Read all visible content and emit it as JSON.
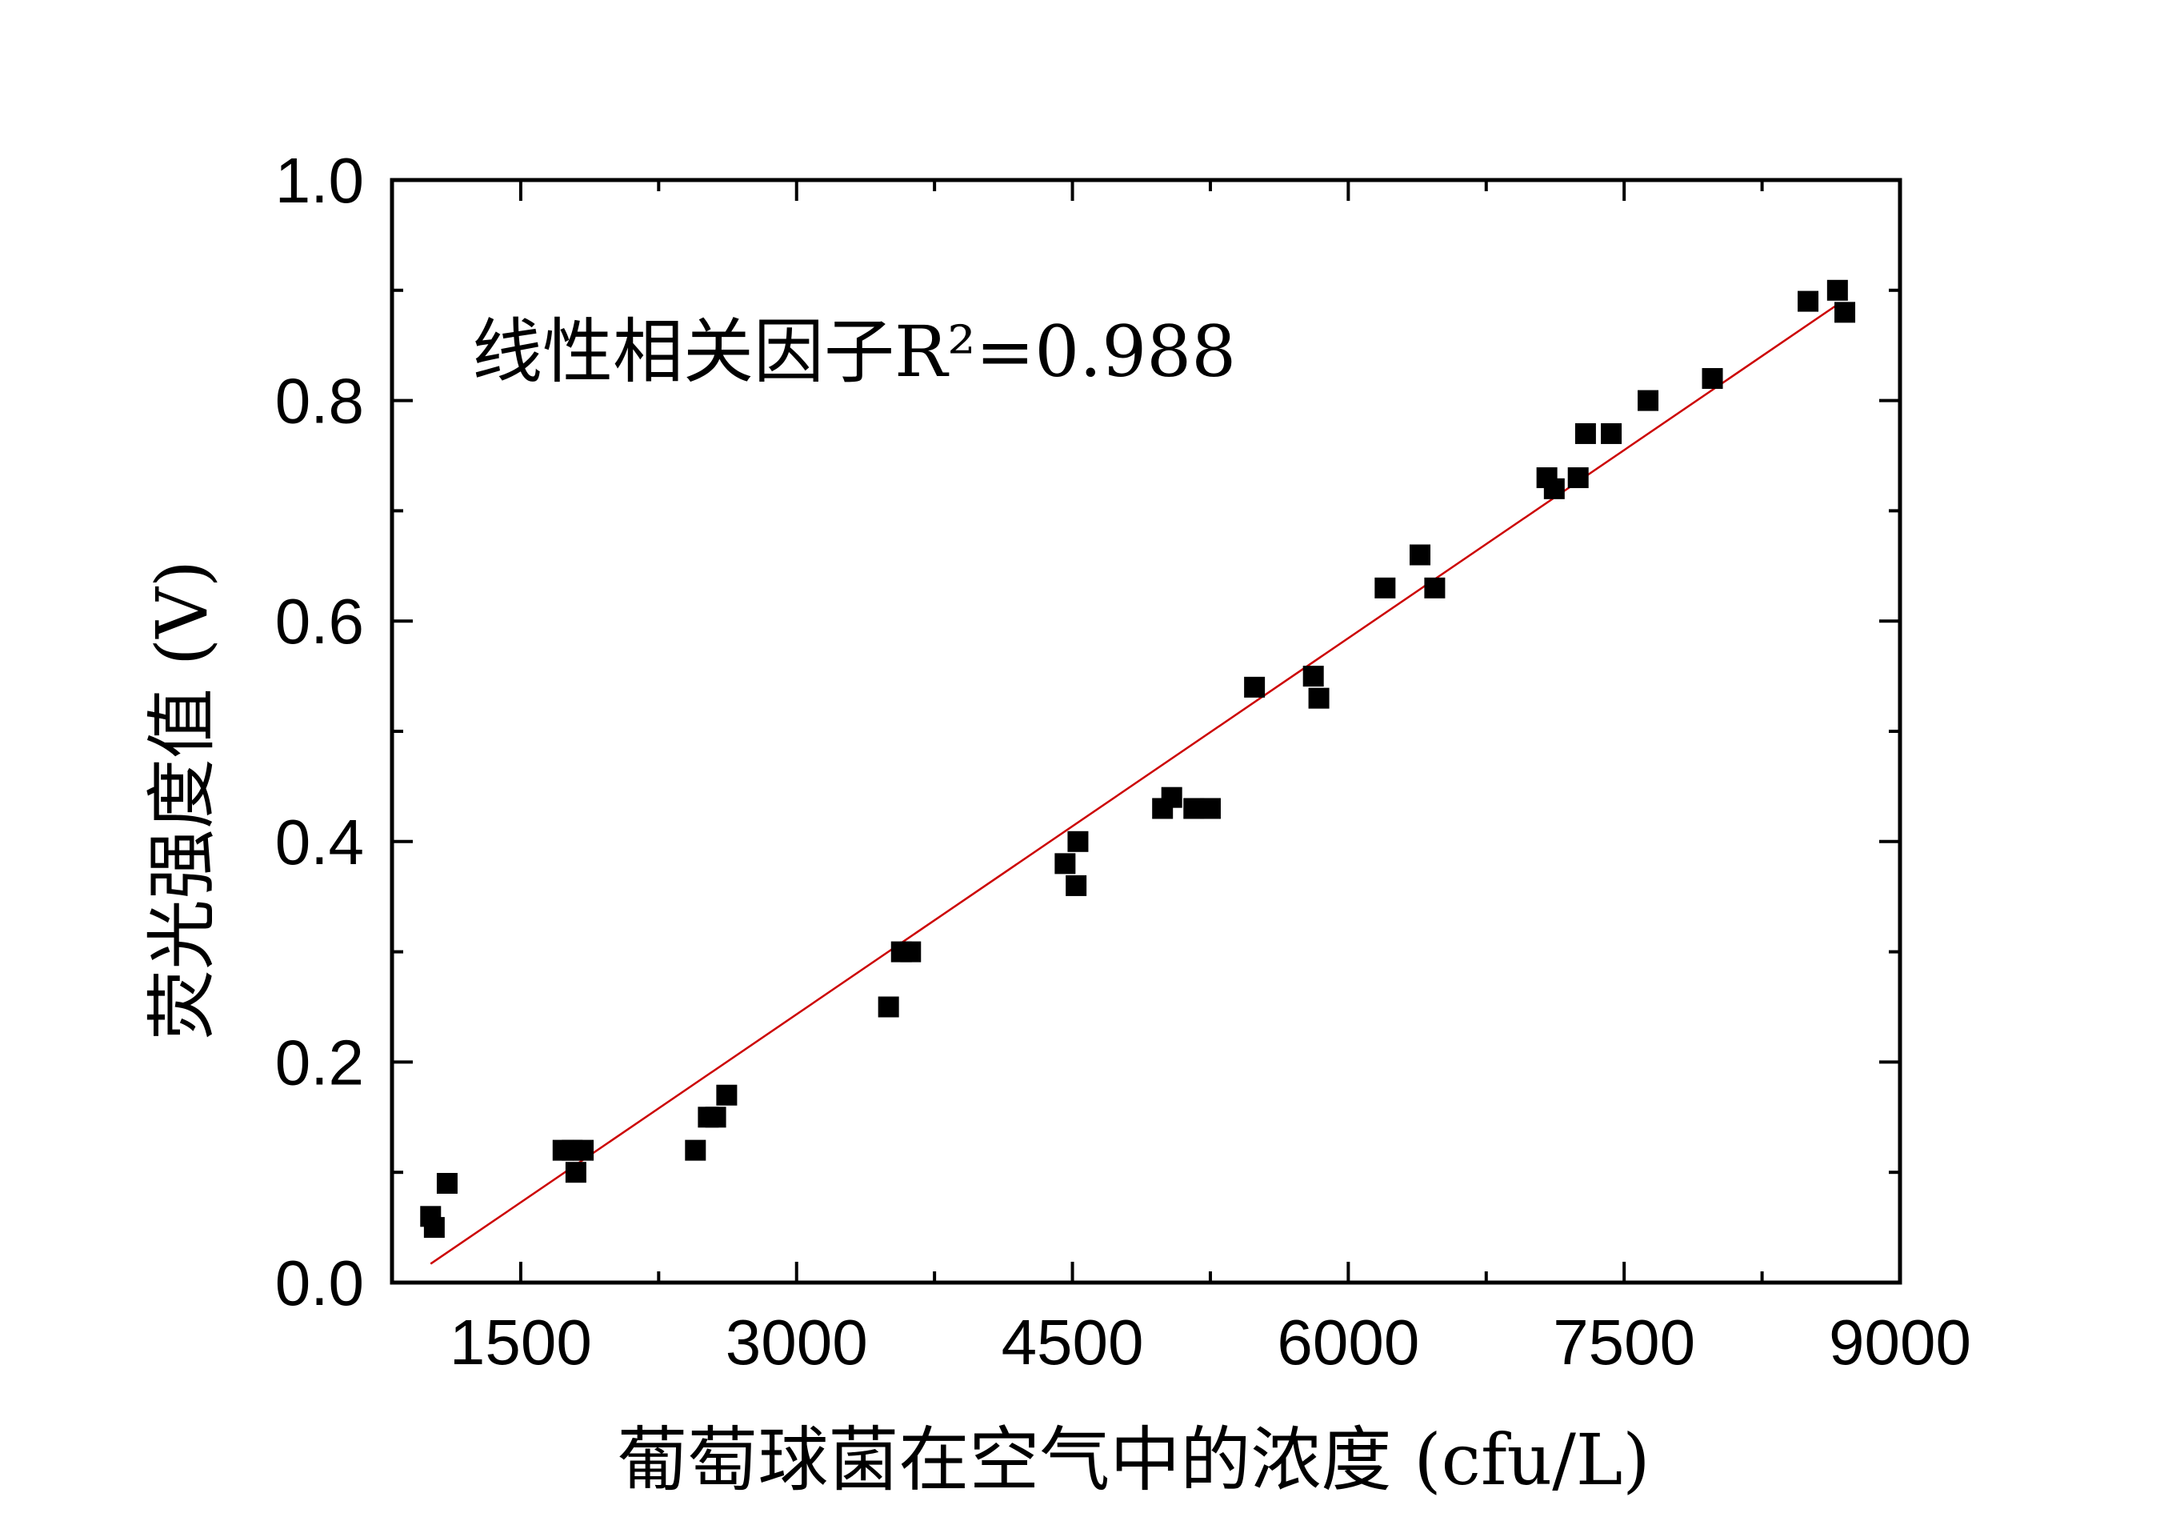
{
  "chart_data": {
    "type": "scatter",
    "title": "",
    "xlabel": "葡萄球菌在空气中的浓度 (cfu/L)",
    "ylabel": "荧光强度值 (V)",
    "xlim": [
      800,
      9000
    ],
    "ylim": [
      0.0,
      1.0
    ],
    "x_ticks": [
      1500,
      3000,
      4500,
      6000,
      7500,
      9000
    ],
    "x_tick_labels": [
      "1500",
      "3000",
      "4500",
      "6000",
      "7500",
      "9000"
    ],
    "x_minor_ticks": [
      750,
      2250,
      3750,
      5250,
      6750,
      8250
    ],
    "y_ticks": [
      0.0,
      0.2,
      0.4,
      0.6,
      0.8,
      1.0
    ],
    "y_tick_labels": [
      "0.0",
      "0.2",
      "0.4",
      "0.6",
      "0.8",
      "1.0"
    ],
    "y_minor_ticks": [
      0.1,
      0.3,
      0.5,
      0.7,
      0.9
    ],
    "grid": false,
    "annotation": "线性相关因子R²=0.988",
    "colors": {
      "points": "#000000",
      "fit_line": "#cc0000",
      "axes": "#000000"
    },
    "series": [
      {
        "marker": "square",
        "x": [
          1010,
          1030,
          1100,
          1730,
          1780,
          1800,
          1840,
          2450,
          2520,
          2560,
          2620,
          3500,
          3570,
          3620,
          4460,
          4520,
          4530,
          4990,
          5040,
          5160,
          5250,
          5490,
          5810,
          5840,
          6200,
          6390,
          6470,
          7080,
          7120,
          7250,
          7290,
          7430,
          7630,
          7980,
          8500,
          8660,
          8700
        ],
        "y": [
          0.06,
          0.05,
          0.09,
          0.12,
          0.12,
          0.1,
          0.12,
          0.12,
          0.15,
          0.15,
          0.17,
          0.25,
          0.3,
          0.3,
          0.38,
          0.36,
          0.4,
          0.43,
          0.44,
          0.43,
          0.43,
          0.54,
          0.55,
          0.53,
          0.63,
          0.66,
          0.63,
          0.73,
          0.72,
          0.73,
          0.77,
          0.77,
          0.8,
          0.82,
          0.89,
          0.9,
          0.88
        ]
      }
    ],
    "fit_line": {
      "x": [
        1010,
        8660
      ],
      "y": [
        0.017,
        0.887
      ]
    }
  }
}
